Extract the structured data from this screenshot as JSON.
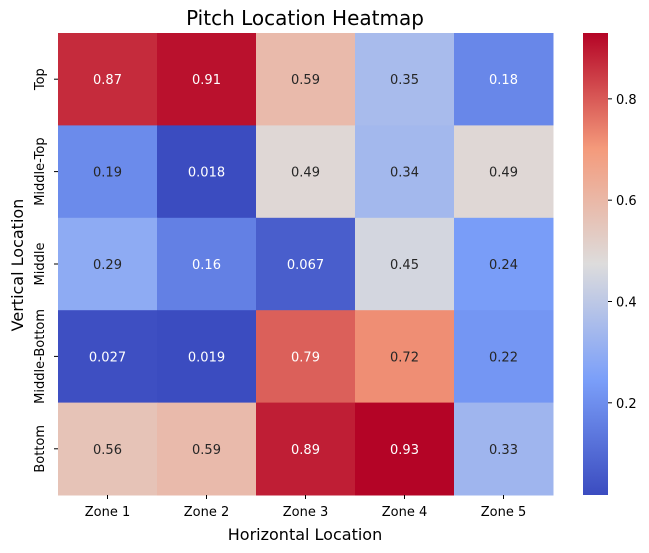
{
  "chart_data": {
    "type": "heatmap",
    "title": "Pitch Location Heatmap",
    "xlabel": "Horizontal Location",
    "ylabel": "Vertical Location",
    "x_categories": [
      "Zone 1",
      "Zone 2",
      "Zone 3",
      "Zone 4",
      "Zone 5"
    ],
    "y_categories": [
      "Top",
      "Middle-Top",
      "Middle",
      "Middle-Bottom",
      "Bottom"
    ],
    "values": [
      [
        0.87,
        0.91,
        0.59,
        0.35,
        0.18
      ],
      [
        0.19,
        0.018,
        0.49,
        0.34,
        0.49
      ],
      [
        0.29,
        0.16,
        0.067,
        0.45,
        0.24
      ],
      [
        0.027,
        0.019,
        0.79,
        0.72,
        0.22
      ],
      [
        0.56,
        0.59,
        0.89,
        0.93,
        0.33
      ]
    ],
    "labels": [
      [
        "0.87",
        "0.91",
        "0.59",
        "0.35",
        "0.18"
      ],
      [
        "0.19",
        "0.018",
        "0.49",
        "0.34",
        "0.49"
      ],
      [
        "0.29",
        "0.16",
        "0.067",
        "0.45",
        "0.24"
      ],
      [
        "0.027",
        "0.019",
        "0.79",
        "0.72",
        "0.22"
      ],
      [
        "0.56",
        "0.59",
        "0.89",
        "0.93",
        "0.33"
      ]
    ],
    "colormap": "coolwarm",
    "vmin": 0.018,
    "vmax": 0.93,
    "colorbar_ticks": [
      0.2,
      0.4,
      0.6,
      0.8
    ],
    "colorbar_tick_labels": [
      "0.2",
      "0.4",
      "0.6",
      "0.8"
    ]
  }
}
